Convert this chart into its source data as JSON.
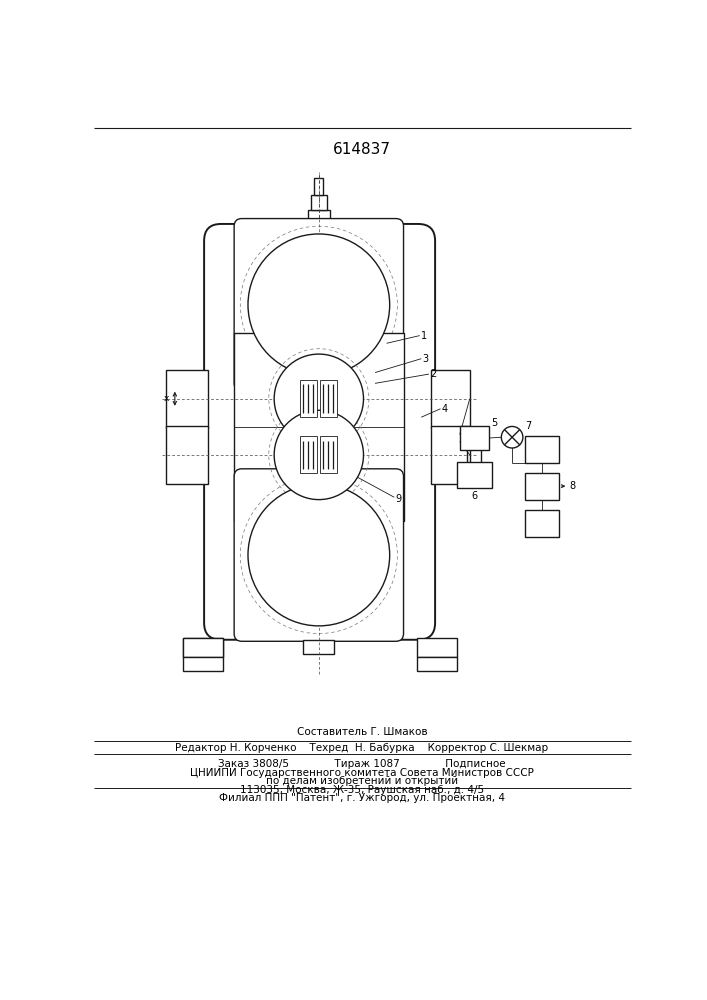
{
  "patent_number": "614837",
  "bg_color": "#ffffff",
  "line_color": "#1a1a1a",
  "footer_text_lines": [
    "Составитель Г. Шмаков",
    "Редактор Н. Корченко    Техред  Н. Бабурка    Корректор С. Шекмар",
    "Заказ 3808/5              Тираж 1087              Подписное",
    "ЦНИИПИ Государственного комитета Совета Министров СССР",
    "по делам изобретений и открытий",
    "113035, Москва, Ж-35, Раушская наб., д. 4/5",
    "Филиал ППП \"Патент\", г. Ужгород, ул. Проектная, 4"
  ]
}
